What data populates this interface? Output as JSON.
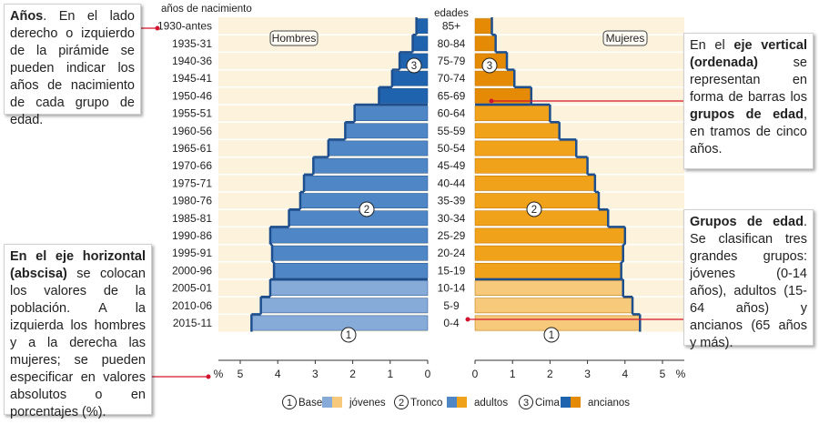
{
  "chart_data": {
    "type": "bar",
    "orientation": "horizontal-pyramid",
    "title_left": "años de nacimiento",
    "title_center": "edades",
    "male_label": "Hombres",
    "female_label": "Mujeres",
    "axis_unit": "%",
    "xlim": [
      0,
      5
    ],
    "x_ticks_male": [
      "5",
      "4",
      "3",
      "2",
      "1",
      "0"
    ],
    "x_ticks_female": [
      "0",
      "1",
      "2",
      "3",
      "4",
      "5"
    ],
    "birth_years": [
      "1930-antes",
      "1935-31",
      "1940-36",
      "1945-41",
      "1950-46",
      "1955-51",
      "1960-56",
      "1965-61",
      "1970-66",
      "1975-71",
      "1980-76",
      "1985-81",
      "1990-86",
      "1995-91",
      "2000-96",
      "2005-01",
      "2010-06",
      "2015-11"
    ],
    "age_groups": [
      "85+",
      "80-84",
      "75-79",
      "70-74",
      "65-69",
      "60-64",
      "55-59",
      "50-54",
      "45-49",
      "40-44",
      "35-39",
      "30-34",
      "25-29",
      "20-24",
      "15-19",
      "10-14",
      "5-9",
      "0-4"
    ],
    "series": [
      {
        "name": "Hombres",
        "values": [
          0.3,
          0.4,
          0.75,
          0.95,
          1.3,
          1.95,
          2.2,
          2.65,
          3.05,
          3.3,
          3.4,
          3.7,
          4.2,
          4.15,
          4.1,
          4.2,
          4.45,
          4.7
        ]
      },
      {
        "name": "Mujeres",
        "values": [
          0.45,
          0.55,
          0.85,
          1.05,
          1.5,
          2.0,
          2.25,
          2.7,
          3.0,
          3.2,
          3.3,
          3.55,
          4.0,
          3.95,
          3.9,
          3.95,
          4.2,
          4.4
        ]
      }
    ],
    "group_of_bar": [
      "ancianos",
      "ancianos",
      "ancianos",
      "ancianos",
      "ancianos",
      "adultos",
      "adultos",
      "adultos",
      "adultos",
      "adultos",
      "adultos",
      "adultos",
      "adultos",
      "adultos",
      "adultos",
      "jovenes",
      "jovenes",
      "jovenes"
    ],
    "group_markers": {
      "cima": "3",
      "tronco": "2",
      "base": "1"
    },
    "legend": [
      {
        "number": "1",
        "label": "Base",
        "group": "jóvenes"
      },
      {
        "number": "2",
        "label": "Tronco",
        "group": "adultos"
      },
      {
        "number": "3",
        "label": "Cima",
        "group": "ancianos"
      }
    ]
  },
  "colors": {
    "background": "#fdf3dc",
    "row_divider": "#ffffff",
    "male_jovenes": "#86abd8",
    "male_adultos": "#4f86c6",
    "male_ancianos": "#1f62ad",
    "female_jovenes": "#f6c97b",
    "female_adultos": "#f0a21b",
    "female_ancianos": "#e48a05",
    "outline": "#1d4f8f",
    "annotation_line": "#d4142c"
  },
  "annotations": {
    "years": {
      "title": "Años",
      "text": ". En el lado derecho o izquierdo de la pirámide se pueden indicar los años de nacimiento de cada grupo de edad."
    },
    "horizontal": {
      "title": "En el eje horizontal (abscisa)",
      "text": " se colocan los valores de la población. A la izquierda los hombres y a la derecha las mujeres; se pueden especificar en valores absolutos o en porcentajes (%)."
    },
    "vertical": {
      "pre": "En el ",
      "title": "eje vertical (ordenada)",
      "mid": " se representan en forma de barras los ",
      "title2": "grupos de edad",
      "post": ", en tramos de cinco años."
    },
    "groups": {
      "title": "Grupos de edad",
      "text": ". Se clasifican tres grandes grupos: jóvenes (0-14 años), adultos (15-64 años) y ancianos (65 años y más)."
    }
  }
}
